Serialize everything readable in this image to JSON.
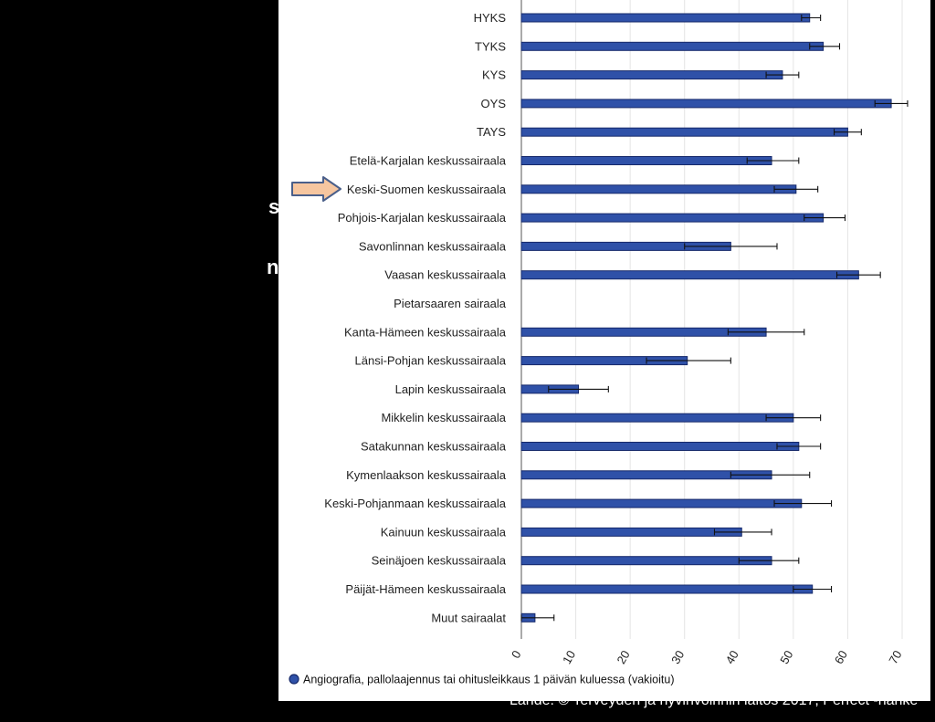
{
  "source": "Lähde: © Terveyden ja hyvinvoinnin laitos 2017, Perfect -hanke",
  "cut_text": [
    "s",
    "n"
  ],
  "colors": {
    "bar": "#2f51a8",
    "bar_edge": "#16296a",
    "axis": "#555555",
    "arrow_fill": "#f6c6a0",
    "arrow_stroke": "#4a5f8a"
  },
  "highlight_category": "Keski-Suomen keskussairaala",
  "chart_data": {
    "type": "bar",
    "orientation": "horizontal",
    "categories": [
      "HYKS",
      "TYKS",
      "KYS",
      "OYS",
      "TAYS",
      "Etelä-Karjalan keskussairaala",
      "Keski-Suomen keskussairaala",
      "Pohjois-Karjalan keskussairaala",
      "Savonlinnan keskussairaala",
      "Vaasan keskussairaala",
      "Pietarsaaren sairaala",
      "Kanta-Hämeen keskussairaala",
      "Länsi-Pohjan keskussairaala",
      "Lapin keskussairaala",
      "Mikkelin keskussairaala",
      "Satakunnan keskussairaala",
      "Kymenlaakson keskussairaala",
      "Keski-Pohjanmaan keskussairaala",
      "Kainuun keskussairaala",
      "Seinäjoen keskussairaala",
      "Päijät-Hämeen keskussairaala",
      "Muut sairaalat"
    ],
    "series": [
      {
        "name": "Angiografia, pallolaajennus tai ohitusleikkaus 1 päivän kuluessa (vakioitu)",
        "values": [
          53,
          55.5,
          48,
          68,
          60,
          46,
          50.5,
          55.5,
          38.5,
          62,
          0,
          45,
          30.5,
          10.5,
          50,
          51,
          46,
          51.5,
          40.5,
          46,
          53.5,
          2.5
        ],
        "error_low": [
          51.5,
          53,
          45,
          65,
          57.5,
          41.5,
          46.5,
          52,
          30,
          58,
          0,
          38,
          23,
          5,
          45,
          47,
          38.5,
          46.5,
          35.5,
          40,
          50,
          0
        ],
        "error_high": [
          55,
          58.5,
          51,
          71,
          62.5,
          51,
          54.5,
          59.5,
          47,
          66,
          0,
          52,
          38.5,
          16,
          55,
          55,
          53,
          57,
          46,
          51,
          57,
          6
        ]
      }
    ],
    "xlim": [
      0,
      70
    ],
    "xticks": [
      0,
      10,
      20,
      30,
      40,
      50,
      60,
      70
    ],
    "grid": true,
    "legend": "bottom-left"
  }
}
